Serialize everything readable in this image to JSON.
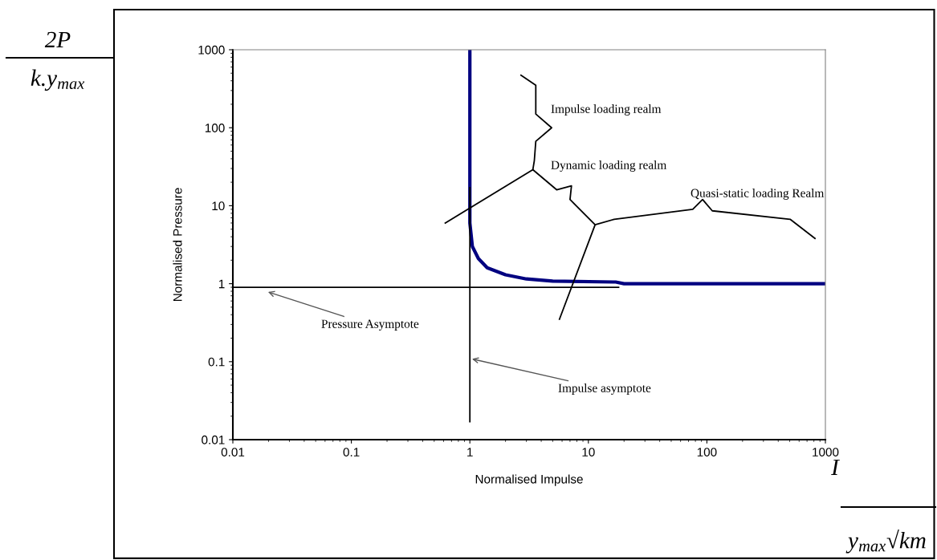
{
  "chart_data": {
    "type": "line",
    "xlabel": "Normalised Impulse",
    "ylabel": "Normalised Pressure",
    "log": "xy",
    "grid": false,
    "legend": false,
    "marker": "none",
    "line_style": "solid",
    "xlim": [
      0.01,
      1000
    ],
    "ylim": [
      0.01,
      1000
    ],
    "xticks": [
      0.01,
      0.1,
      1,
      10,
      100,
      1000
    ],
    "yticks": [
      0.01,
      0.1,
      1,
      10,
      100,
      1000
    ],
    "series": [
      {
        "color": "#000080",
        "x": [
          1,
          1,
          1.05,
          1.18,
          1.4,
          2,
          3,
          5,
          17,
          20,
          1000
        ],
        "values": [
          1000,
          6,
          3,
          2.1,
          1.6,
          1.3,
          1.15,
          1.08,
          1.05,
          1.0,
          1.0
        ]
      },
      {
        "color": "#000000",
        "x": [
          0.01,
          18
        ],
        "values": [
          0.9,
          0.9
        ]
      },
      {
        "color": "#000000",
        "x": [
          1,
          1
        ],
        "values": [
          0.017,
          17
        ]
      },
      {
        "color": "#000000",
        "x": [
          2.7,
          3.6,
          3.6,
          4.9,
          3.6,
          3.5,
          3.4
        ],
        "values": [
          470,
          350,
          150,
          100,
          67,
          38,
          29
        ]
      },
      {
        "color": "#000000",
        "x": [
          0.62,
          3.4,
          5.4,
          7.2,
          7.0,
          11.4,
          5.7
        ],
        "values": [
          6,
          29,
          16,
          18,
          12,
          5.7,
          0.35
        ]
      },
      {
        "color": "#000000",
        "x": [
          11.4,
          16.5,
          76,
          92,
          111,
          504,
          817
        ],
        "values": [
          5.7,
          6.7,
          9,
          12,
          8.6,
          6.7,
          3.8
        ]
      }
    ],
    "annotations": [
      "2P",
      "k.y$_{max}$",
      "I",
      "y$_{max}$√km",
      {
        "text": "Pressure Asymptote",
        "x": 0.019,
        "y": 0.8
      },
      {
        "text": "Impulse asymptote",
        "x": 1,
        "y": 0.11
      },
      "Impulse loading realm",
      "Dynamic loading realm",
      "Quasi-static loading Realm"
    ]
  }
}
